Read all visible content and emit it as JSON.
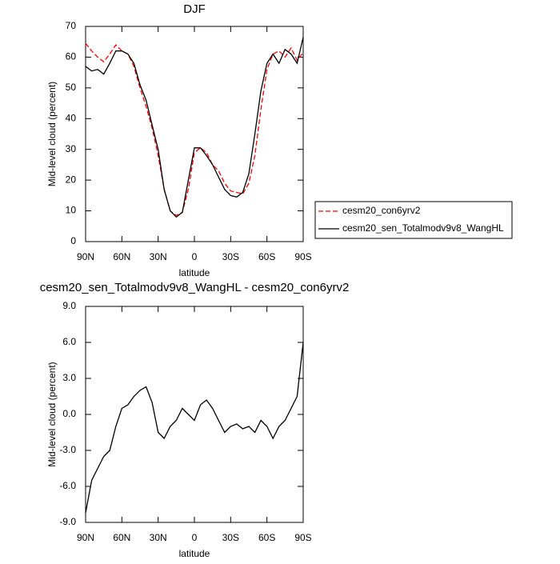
{
  "chart_data": [
    {
      "type": "line",
      "title": "DJF",
      "xlabel": "latitude",
      "ylabel": "Mid-level cloud (percent)",
      "x": [
        90,
        85,
        80,
        75,
        70,
        65,
        60,
        55,
        50,
        45,
        40,
        35,
        30,
        25,
        20,
        15,
        10,
        5,
        0,
        -5,
        -10,
        -15,
        -20,
        -25,
        -30,
        -35,
        -40,
        -45,
        -50,
        -55,
        -60,
        -65,
        -70,
        -75,
        -80,
        -85,
        -90
      ],
      "xlim": [
        90,
        -90
      ],
      "xticks": [
        {
          "value": 90,
          "label": "90N"
        },
        {
          "value": 60,
          "label": "60N"
        },
        {
          "value": 30,
          "label": "30N"
        },
        0,
        {
          "value": -30,
          "label": "30S"
        },
        {
          "value": -60,
          "label": "60S"
        },
        {
          "value": -90,
          "label": "90S"
        }
      ],
      "ylim": [
        0,
        70
      ],
      "yticks": [
        0,
        10,
        20,
        30,
        40,
        50,
        60,
        70
      ],
      "legend": "right",
      "series": [
        {
          "name": "cesm20_con6yrv2",
          "color": "#ff0000",
          "line_style": "dashed",
          "values": [
            64.5,
            62,
            60,
            58.5,
            61,
            64,
            62,
            61,
            57,
            50,
            44,
            37,
            28,
            17,
            10,
            8.5,
            9.5,
            17,
            29,
            30.5,
            29,
            25,
            23,
            19,
            16.5,
            16,
            15.5,
            19,
            28,
            43,
            56,
            61,
            62,
            60,
            63,
            59,
            61.5
          ]
        },
        {
          "name": "cesm20_sen_Totalmodv9v8_WangHL",
          "color": "#000000",
          "line_style": "solid",
          "values": [
            57,
            55.5,
            56,
            54.5,
            58,
            62,
            62,
            61,
            58,
            51,
            46,
            38,
            30,
            17,
            10,
            8,
            9.5,
            20,
            30.5,
            30.5,
            28,
            25,
            21,
            17,
            15,
            14.5,
            16,
            22,
            35,
            49,
            58,
            61,
            58,
            62.5,
            61,
            58,
            66.5
          ]
        }
      ]
    },
    {
      "type": "line",
      "title": "cesm20_sen_Totalmodv9v8_WangHL - cesm20_con6yrv2",
      "xlabel": "latitude",
      "ylabel": "Mid-level cloud (percent)",
      "x": [
        90,
        85,
        80,
        75,
        70,
        65,
        60,
        55,
        50,
        45,
        40,
        35,
        30,
        25,
        20,
        15,
        10,
        5,
        0,
        -5,
        -10,
        -15,
        -20,
        -25,
        -30,
        -35,
        -40,
        -45,
        -50,
        -55,
        -60,
        -65,
        -70,
        -75,
        -80,
        -85,
        -90
      ],
      "xlim": [
        90,
        -90
      ],
      "xticks": [
        {
          "value": 90,
          "label": "90N"
        },
        {
          "value": 60,
          "label": "60N"
        },
        {
          "value": 30,
          "label": "30N"
        },
        0,
        {
          "value": -30,
          "label": "30S"
        },
        {
          "value": -60,
          "label": "60S"
        },
        {
          "value": -90,
          "label": "90S"
        }
      ],
      "ylim": [
        -9,
        9
      ],
      "yticks": [
        {
          "value": -9,
          "label": "-9.0"
        },
        {
          "value": -6,
          "label": "-6.0"
        },
        {
          "value": -3,
          "label": "-3.0"
        },
        {
          "value": 0,
          "label": "0.0"
        },
        {
          "value": 3,
          "label": "3.0"
        },
        {
          "value": 6,
          "label": "6.0"
        },
        {
          "value": 9,
          "label": "9.0"
        }
      ],
      "series": [
        {
          "color": "#000000",
          "line_style": "solid",
          "values": [
            -8.2,
            -5.5,
            -4.5,
            -3.5,
            -3,
            -1,
            0.5,
            0.8,
            1.5,
            2,
            2.3,
            1,
            -1.5,
            -2,
            -1,
            -0.5,
            0.5,
            0,
            -0.5,
            0.8,
            1.2,
            0.5,
            -0.5,
            -1.5,
            -1,
            -0.8,
            -1.2,
            -1,
            -1.5,
            -0.5,
            -1,
            -2,
            -1,
            -0.5,
            0.5,
            1.5,
            6
          ]
        }
      ]
    }
  ]
}
